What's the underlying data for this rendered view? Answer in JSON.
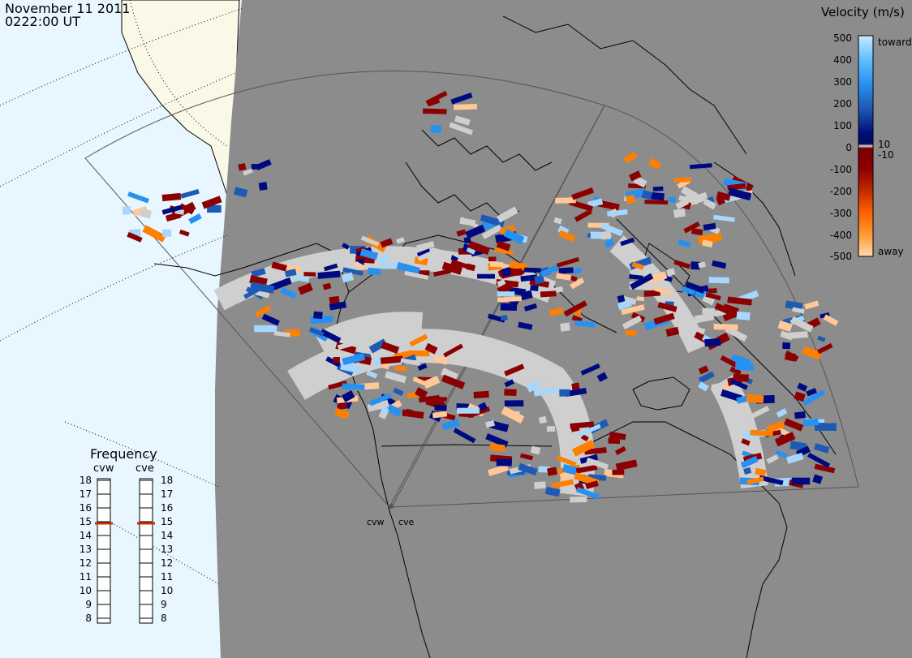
{
  "header": {
    "date": "November 11 2011",
    "time": "0222:00 UT"
  },
  "velocity_legend": {
    "title": "Velocity (m/s)",
    "ticks": [
      "500",
      "400",
      "300",
      "200",
      "100",
      "10",
      "0",
      "-10",
      "-100",
      "-200",
      "-300",
      "-400",
      "-500"
    ],
    "toward_label": "toward",
    "away_label": "away"
  },
  "radars": {
    "left_label": "cvw",
    "right_label": "cve"
  },
  "frequency_panel": {
    "title": "Frequency",
    "left_header": "cvw",
    "right_header": "cve",
    "scale": [
      18,
      17,
      16,
      15,
      14,
      13,
      12,
      11,
      10,
      9,
      8
    ],
    "left_value": 15,
    "right_value": 15,
    "marker_color": "#cc3300"
  },
  "colors": {
    "ocean": "#e8f6ff",
    "night": "#8c8c8c",
    "day_land": "#faf8e6",
    "ground_scatter": "#cfcfcf",
    "dark_red": "#8b0000",
    "red": "#b01010",
    "orange": "#ff7f00",
    "light_orange": "#ffc896",
    "navy": "#000a80",
    "blue": "#1e5ab4",
    "sky_blue": "#2891f0",
    "light_blue": "#a5d7ff"
  }
}
